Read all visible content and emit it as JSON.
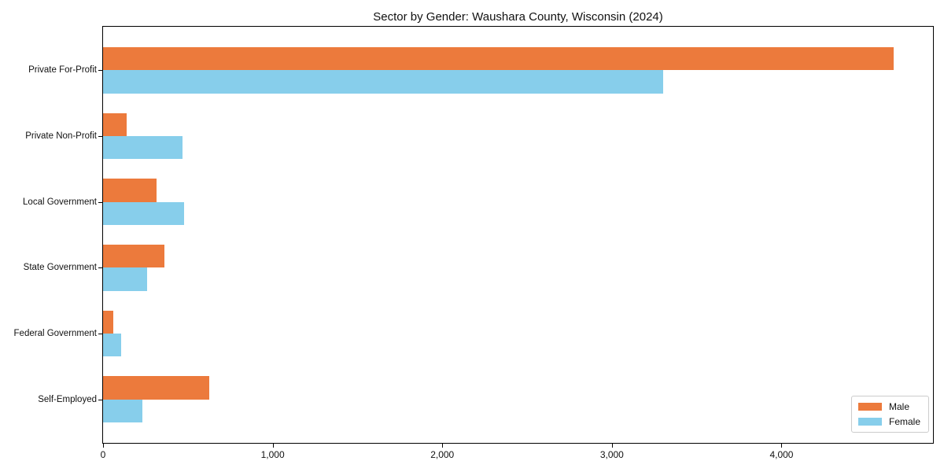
{
  "chart_data": {
    "type": "bar",
    "orientation": "horizontal",
    "title": "Sector by Gender: Waushara County, Wisconsin (2024)",
    "categories": [
      "Private For-Profit",
      "Private Non-Profit",
      "Local Government",
      "State Government",
      "Federal Government",
      "Self-Employed"
    ],
    "series": [
      {
        "name": "Male",
        "color": "#EC7A3C",
        "values": [
          4660,
          140,
          315,
          360,
          60,
          625
        ]
      },
      {
        "name": "Female",
        "color": "#87CEEB",
        "values": [
          3300,
          470,
          480,
          260,
          105,
          230
        ]
      }
    ],
    "xlim": [
      0,
      4893
    ],
    "xticks": [
      {
        "value": 0,
        "label": "0"
      },
      {
        "value": 1000,
        "label": "1,000"
      },
      {
        "value": 2000,
        "label": "2,000"
      },
      {
        "value": 3000,
        "label": "3,000"
      },
      {
        "value": 4000,
        "label": "4,000"
      }
    ],
    "xlabel": "",
    "ylabel": "",
    "grid": false,
    "legend_position": "lower right",
    "spine_color": "#000000",
    "background_color": "#ffffff"
  }
}
